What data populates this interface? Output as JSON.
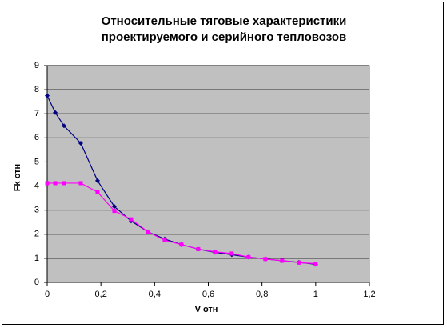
{
  "chart_data": {
    "type": "line",
    "title": [
      "Относительные тяговые характеристики",
      "проектируемого и серийного тепловозов"
    ],
    "x_label": "V отн",
    "y_label": "Fk отн",
    "x": [
      0,
      0.03,
      0.0625,
      0.125,
      0.1875,
      0.25,
      0.3125,
      0.375,
      0.4375,
      0.5,
      0.5625,
      0.625,
      0.6875,
      0.75,
      0.8125,
      0.875,
      0.9375,
      1
    ],
    "series": [
      {
        "color": "#000080",
        "marker": "diamond",
        "values": [
          7.75,
          7.05,
          6.5,
          5.78,
          4.22,
          3.15,
          2.55,
          2.1,
          1.8,
          1.57,
          1.38,
          1.25,
          1.15,
          1.05,
          0.97,
          0.9,
          0.83,
          0.75
        ]
      },
      {
        "color": "#ff00ff",
        "marker": "square",
        "values": [
          4.12,
          4.12,
          4.12,
          4.12,
          3.75,
          2.97,
          2.62,
          2.1,
          1.75,
          1.57,
          1.38,
          1.27,
          1.2,
          1.05,
          0.97,
          0.9,
          0.82,
          0.78
        ]
      }
    ],
    "xlim": [
      0,
      1.2
    ],
    "xticks": [
      0,
      {
        "value": 0.2,
        "label": "0,2"
      },
      {
        "value": 0.4,
        "label": "0,4"
      },
      {
        "value": 0.6,
        "label": "0,6"
      },
      {
        "value": 0.8,
        "label": "0,8"
      },
      1,
      {
        "value": 1.2,
        "label": "1,2"
      }
    ],
    "ylim": [
      0,
      9
    ],
    "yticks": [
      0,
      1,
      2,
      3,
      4,
      5,
      6,
      7,
      8,
      9
    ],
    "grid": true,
    "plot_background": "#c0c0c0"
  }
}
